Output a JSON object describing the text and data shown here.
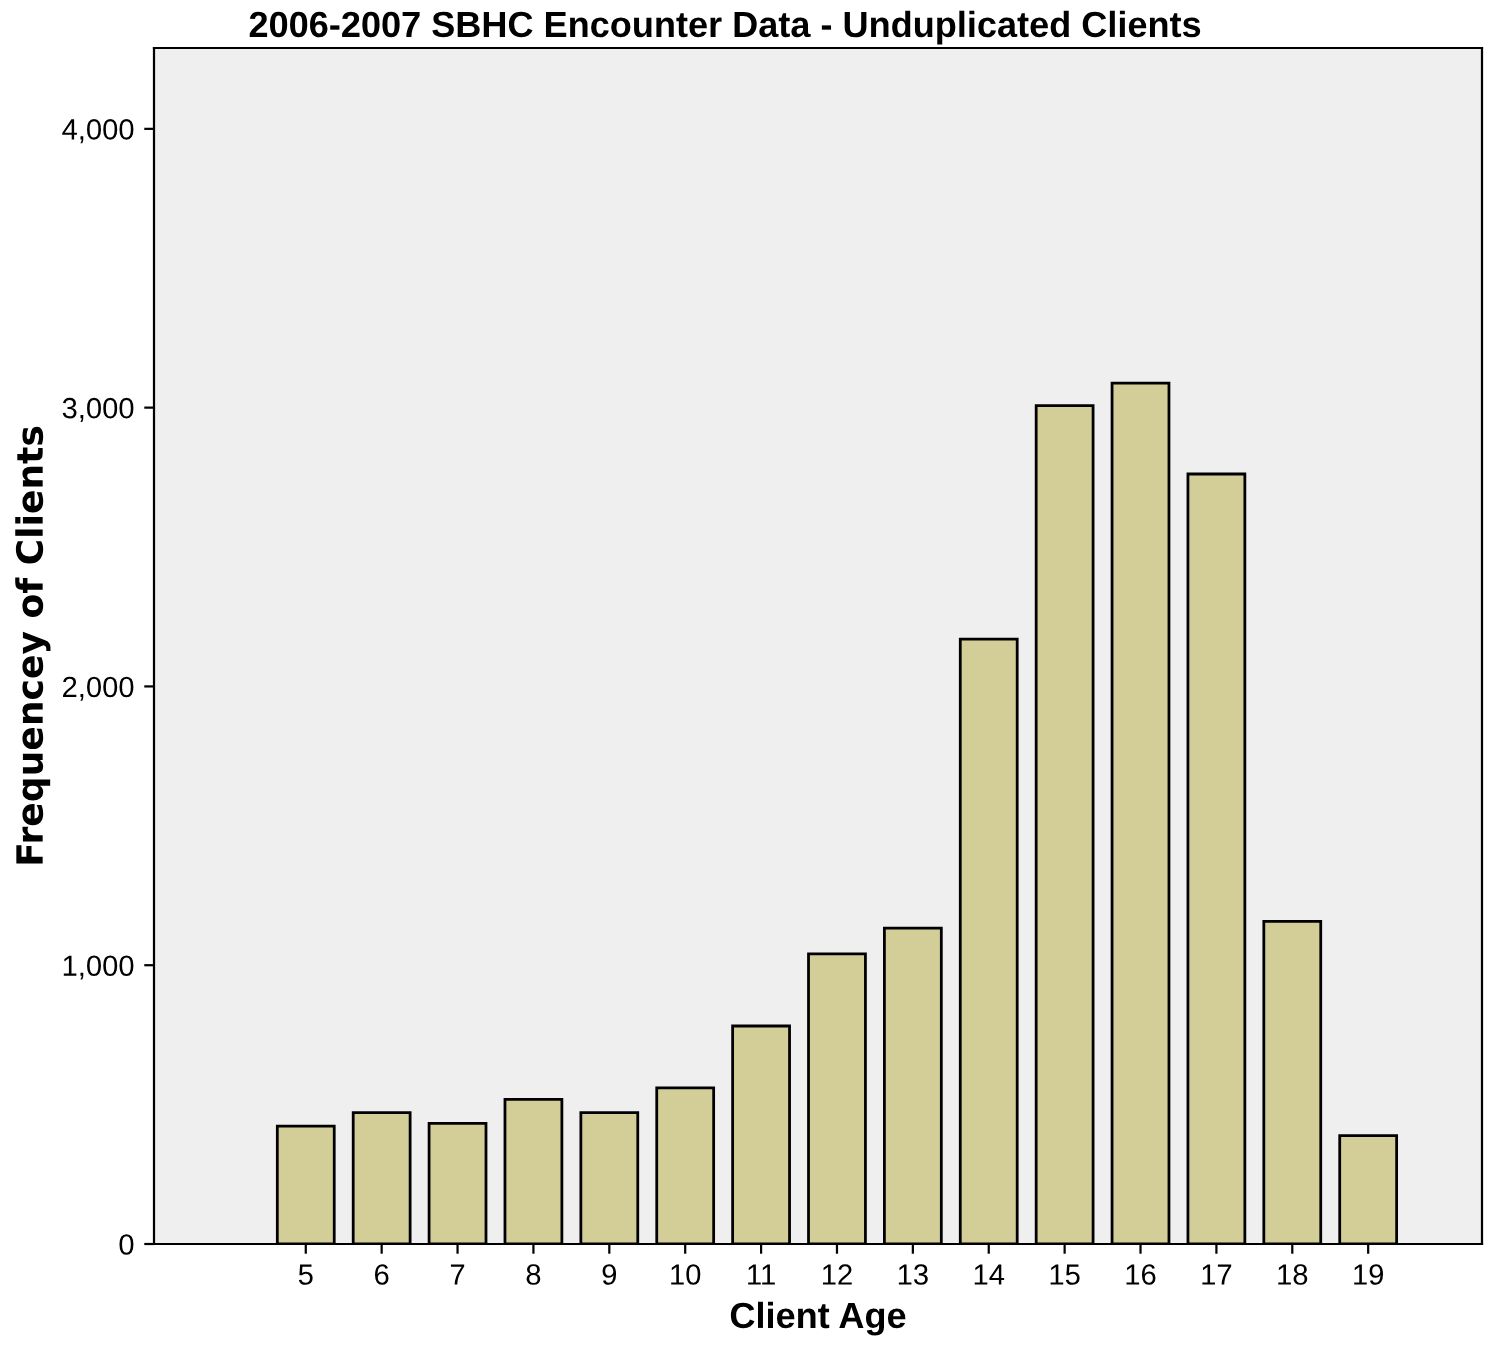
{
  "chart_data": {
    "type": "bar",
    "title": "2006-2007 SBHC Encounter Data - Unduplicated Clients",
    "xlabel": "Client Age",
    "ylabel": "Frequencey of Clients",
    "categories": [
      "5",
      "6",
      "7",
      "8",
      "9",
      "10",
      "11",
      "12",
      "13",
      "14",
      "15",
      "16",
      "17",
      "18",
      "19"
    ],
    "values": [
      423,
      471,
      433,
      519,
      471,
      560,
      782,
      1041,
      1133,
      2170,
      3007,
      3088,
      2762,
      1157,
      389
    ],
    "color": "#d3ce97",
    "ylim": [
      0,
      4290
    ],
    "yticks": [
      {
        "value": 0,
        "label": "0"
      },
      {
        "value": 1000,
        "label": "1,000"
      },
      {
        "value": 2000,
        "label": "2,000"
      },
      {
        "value": 3000,
        "label": "3,000"
      },
      {
        "value": 4000,
        "label": "4,000"
      }
    ],
    "grid": false,
    "legend": false
  }
}
